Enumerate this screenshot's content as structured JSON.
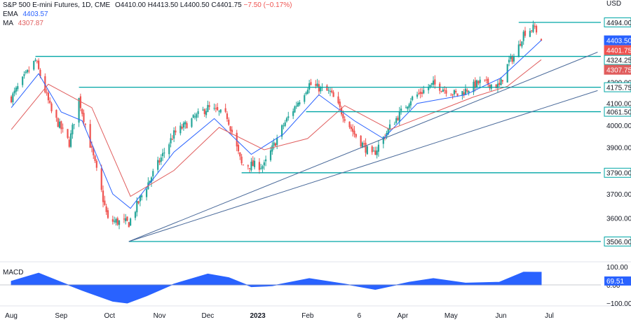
{
  "header": {
    "symbol": "S&P 500 E-mini Futures, 1D, CME",
    "open": "O4410.00",
    "high": "H4413.50",
    "low": "L4400.50",
    "close": "C4401.75",
    "change": "−7.50 (−0.17%)",
    "ema_label": "EMA",
    "ema_value": "4403.57",
    "ma_label": "MA",
    "ma_value": "4307.87",
    "currency": "USD"
  },
  "colors": {
    "up": "#26a69a",
    "down": "#ef5350",
    "ema": "#2962ff",
    "ma": "#e05d5d",
    "level": "#00a6a6",
    "trend": "#4a6a9a",
    "macd": "#2962ff"
  },
  "chart_data": [
    {
      "type": "candlestick",
      "title": "S&P 500 E-mini Futures, 1D, CME",
      "y_scale": "log",
      "x_ticks": [
        "Aug",
        "Sep",
        "Oct",
        "Nov",
        "Dec",
        "2023",
        "Feb",
        "6",
        "Apr",
        "May",
        "Jun",
        "Jul"
      ],
      "y_ticks": [
        "4200.00",
        "4100.00",
        "4000.00",
        "3900.00",
        "3700.00",
        "3600.00"
      ],
      "price_labels": [
        {
          "text": "4494.00",
          "value": 4494,
          "style": "level"
        },
        {
          "text": "4403.50",
          "value": 4403.5,
          "style": "ema"
        },
        {
          "text": "4401.75",
          "value": 4401.75,
          "style": "close"
        },
        {
          "text": "4324.25",
          "value": 4324.25,
          "style": "level"
        },
        {
          "text": "4307.75",
          "value": 4307.75,
          "style": "ma"
        },
        {
          "text": "4175.75",
          "value": 4175.75,
          "style": "level"
        },
        {
          "text": "4061.50",
          "value": 4061.5,
          "style": "level"
        },
        {
          "text": "3790.00",
          "value": 3790,
          "style": "level"
        },
        {
          "text": "3506.00",
          "value": 3506,
          "style": "level"
        }
      ],
      "horizontal_levels": [
        {
          "value": 4494,
          "from": "2023-06-12"
        },
        {
          "value": 4324.25,
          "from": "2022-08-16"
        },
        {
          "value": 4175.75,
          "from": "2022-09-12"
        },
        {
          "value": 4061.5,
          "from": "2023-01-31"
        },
        {
          "value": 3790,
          "from": "2022-12-22"
        },
        {
          "value": 3506,
          "from": "2022-10-13"
        }
      ],
      "trendlines": [
        {
          "from": {
            "date": "2022-10-13",
            "value": 3506
          },
          "to": {
            "date": "2023-07-31",
            "value": 4345
          }
        },
        {
          "from": {
            "date": "2022-10-13",
            "value": 3506
          },
          "to": {
            "date": "2023-07-31",
            "value": 4160
          }
        }
      ],
      "price_path": [
        {
          "date": "2022-08-01",
          "close": 4125
        },
        {
          "date": "2022-08-16",
          "close": 4305
        },
        {
          "date": "2022-08-26",
          "close": 4060
        },
        {
          "date": "2022-09-06",
          "close": 3920
        },
        {
          "date": "2022-09-12",
          "close": 4120
        },
        {
          "date": "2022-09-30",
          "close": 3590
        },
        {
          "date": "2022-10-13",
          "close": 3580
        },
        {
          "date": "2022-10-20",
          "close": 3680
        },
        {
          "date": "2022-11-10",
          "close": 3960
        },
        {
          "date": "2022-12-01",
          "close": 4080
        },
        {
          "date": "2022-12-13",
          "close": 4040
        },
        {
          "date": "2022-12-22",
          "close": 3825
        },
        {
          "date": "2023-01-05",
          "close": 3820
        },
        {
          "date": "2023-01-17",
          "close": 4000
        },
        {
          "date": "2023-02-02",
          "close": 4190
        },
        {
          "date": "2023-02-15",
          "close": 4150
        },
        {
          "date": "2023-03-02",
          "close": 3960
        },
        {
          "date": "2023-03-13",
          "close": 3860
        },
        {
          "date": "2023-03-24",
          "close": 3990
        },
        {
          "date": "2023-04-06",
          "close": 4120
        },
        {
          "date": "2023-04-20",
          "close": 4190
        },
        {
          "date": "2023-05-05",
          "close": 4140
        },
        {
          "date": "2023-05-19",
          "close": 4200
        },
        {
          "date": "2023-05-31",
          "close": 4180
        },
        {
          "date": "2023-06-06",
          "close": 4300
        },
        {
          "date": "2023-06-10",
          "close": 4330
        },
        {
          "date": "2023-06-15",
          "close": 4440
        },
        {
          "date": "2023-06-22",
          "close": 4470
        },
        {
          "date": "2023-06-26",
          "close": 4401.75
        }
      ],
      "ema_path": [
        {
          "date": "2022-08-01",
          "value": 4080
        },
        {
          "date": "2022-08-18",
          "value": 4240
        },
        {
          "date": "2022-09-01",
          "value": 4060
        },
        {
          "date": "2022-09-14",
          "value": 4020
        },
        {
          "date": "2022-10-03",
          "value": 3700
        },
        {
          "date": "2022-10-14",
          "value": 3640
        },
        {
          "date": "2022-11-10",
          "value": 3880
        },
        {
          "date": "2022-12-05",
          "value": 4030
        },
        {
          "date": "2022-12-28",
          "value": 3870
        },
        {
          "date": "2023-01-17",
          "value": 3960
        },
        {
          "date": "2023-02-08",
          "value": 4140
        },
        {
          "date": "2023-03-02",
          "value": 4020
        },
        {
          "date": "2023-03-20",
          "value": 3940
        },
        {
          "date": "2023-04-10",
          "value": 4100
        },
        {
          "date": "2023-05-10",
          "value": 4140
        },
        {
          "date": "2023-06-01",
          "value": 4220
        },
        {
          "date": "2023-06-26",
          "value": 4403.57
        }
      ],
      "ma_path": [
        {
          "date": "2022-08-01",
          "value": 3980
        },
        {
          "date": "2022-08-24",
          "value": 4190
        },
        {
          "date": "2022-09-20",
          "value": 4080
        },
        {
          "date": "2022-10-14",
          "value": 3690
        },
        {
          "date": "2022-11-10",
          "value": 3800
        },
        {
          "date": "2022-12-08",
          "value": 3990
        },
        {
          "date": "2023-01-05",
          "value": 3890
        },
        {
          "date": "2023-02-01",
          "value": 3940
        },
        {
          "date": "2023-02-24",
          "value": 4090
        },
        {
          "date": "2023-03-24",
          "value": 3980
        },
        {
          "date": "2023-04-14",
          "value": 4040
        },
        {
          "date": "2023-05-15",
          "value": 4130
        },
        {
          "date": "2023-06-05",
          "value": 4180
        },
        {
          "date": "2023-06-26",
          "value": 4307.87
        }
      ]
    },
    {
      "type": "area",
      "title": "MACD",
      "value_label": "69.51",
      "y_ticks": [
        "100.00",
        "0.00",
        "−100.00"
      ],
      "ylim": [
        -110,
        110
      ],
      "points": [
        {
          "date": "2022-08-01",
          "value": 20
        },
        {
          "date": "2022-08-18",
          "value": 65
        },
        {
          "date": "2022-09-01",
          "value": 15
        },
        {
          "date": "2022-09-14",
          "value": -30
        },
        {
          "date": "2022-10-03",
          "value": -90
        },
        {
          "date": "2022-10-12",
          "value": -100
        },
        {
          "date": "2022-10-24",
          "value": -60
        },
        {
          "date": "2022-11-10",
          "value": 5
        },
        {
          "date": "2022-12-01",
          "value": 60
        },
        {
          "date": "2022-12-14",
          "value": 40
        },
        {
          "date": "2022-12-28",
          "value": -10
        },
        {
          "date": "2023-01-10",
          "value": -5
        },
        {
          "date": "2023-02-02",
          "value": 35
        },
        {
          "date": "2023-02-24",
          "value": 5
        },
        {
          "date": "2023-03-15",
          "value": -25
        },
        {
          "date": "2023-04-05",
          "value": 15
        },
        {
          "date": "2023-04-20",
          "value": 35
        },
        {
          "date": "2023-05-10",
          "value": 10
        },
        {
          "date": "2023-05-31",
          "value": 15
        },
        {
          "date": "2023-06-15",
          "value": 70
        },
        {
          "date": "2023-06-26",
          "value": 69.51
        }
      ]
    }
  ]
}
